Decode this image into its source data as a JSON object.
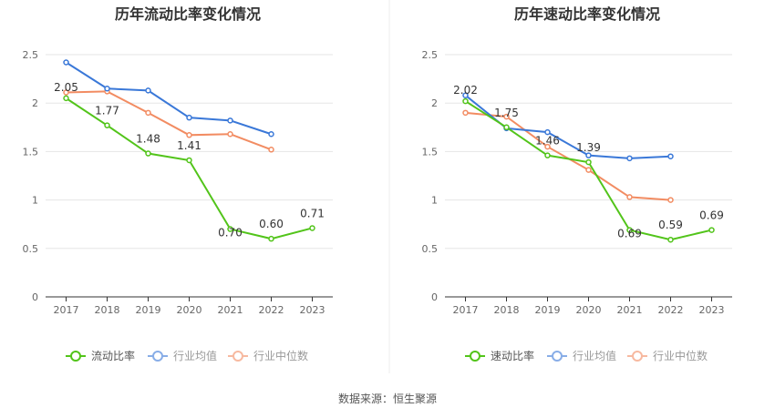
{
  "source_label": "数据来源：恒生聚源",
  "legend_labels": {
    "industry_avg": "行业均值",
    "industry_median": "行业中位数"
  },
  "colors": {
    "main": "#52c41a",
    "industry_avg": "#3a78d8",
    "industry_median": "#f28c62",
    "axis": "#333333",
    "grid": "#e6e6e6"
  },
  "chart_data": [
    {
      "type": "line",
      "title": "历年流动比率变化情况",
      "x": [
        "2017",
        "2018",
        "2019",
        "2020",
        "2021",
        "2022",
        "2023"
      ],
      "ylim": [
        0,
        2.5
      ],
      "yticks": [
        "0",
        "0.5",
        "1",
        "1.5",
        "2",
        "2.5"
      ],
      "grid": true,
      "legend_position": "bottom",
      "series": [
        {
          "name": "流动比率",
          "color": "#52c41a",
          "values": [
            2.05,
            1.77,
            1.48,
            1.41,
            0.7,
            0.6,
            0.71
          ],
          "labels": [
            "2.05",
            "1.77",
            "1.48",
            "1.41",
            "0.70",
            "0.60",
            "0.71"
          ]
        },
        {
          "name": "行业均值",
          "color": "#3a78d8",
          "values": [
            2.42,
            2.15,
            2.13,
            1.85,
            1.82,
            1.68,
            null
          ]
        },
        {
          "name": "行业中位数",
          "color": "#f28c62",
          "values": [
            2.11,
            2.12,
            1.9,
            1.67,
            1.68,
            1.52,
            null
          ]
        }
      ]
    },
    {
      "type": "line",
      "title": "历年速动比率变化情况",
      "x": [
        "2017",
        "2018",
        "2019",
        "2020",
        "2021",
        "2022",
        "2023"
      ],
      "ylim": [
        0,
        2.5
      ],
      "yticks": [
        "0",
        "0.5",
        "1",
        "1.5",
        "2",
        "2.5"
      ],
      "grid": true,
      "legend_position": "bottom",
      "series": [
        {
          "name": "速动比率",
          "color": "#52c41a",
          "values": [
            2.02,
            1.75,
            1.46,
            1.39,
            0.69,
            0.59,
            0.69
          ],
          "labels": [
            "2.02",
            "1.75",
            "1.46",
            "1.39",
            "0.69",
            "0.59",
            "0.69"
          ]
        },
        {
          "name": "行业均值",
          "color": "#3a78d8",
          "values": [
            2.08,
            1.74,
            1.7,
            1.46,
            1.43,
            1.45,
            null
          ]
        },
        {
          "name": "行业中位数",
          "color": "#f28c62",
          "values": [
            1.9,
            1.86,
            1.55,
            1.31,
            1.03,
            1.0,
            null
          ]
        }
      ]
    }
  ]
}
